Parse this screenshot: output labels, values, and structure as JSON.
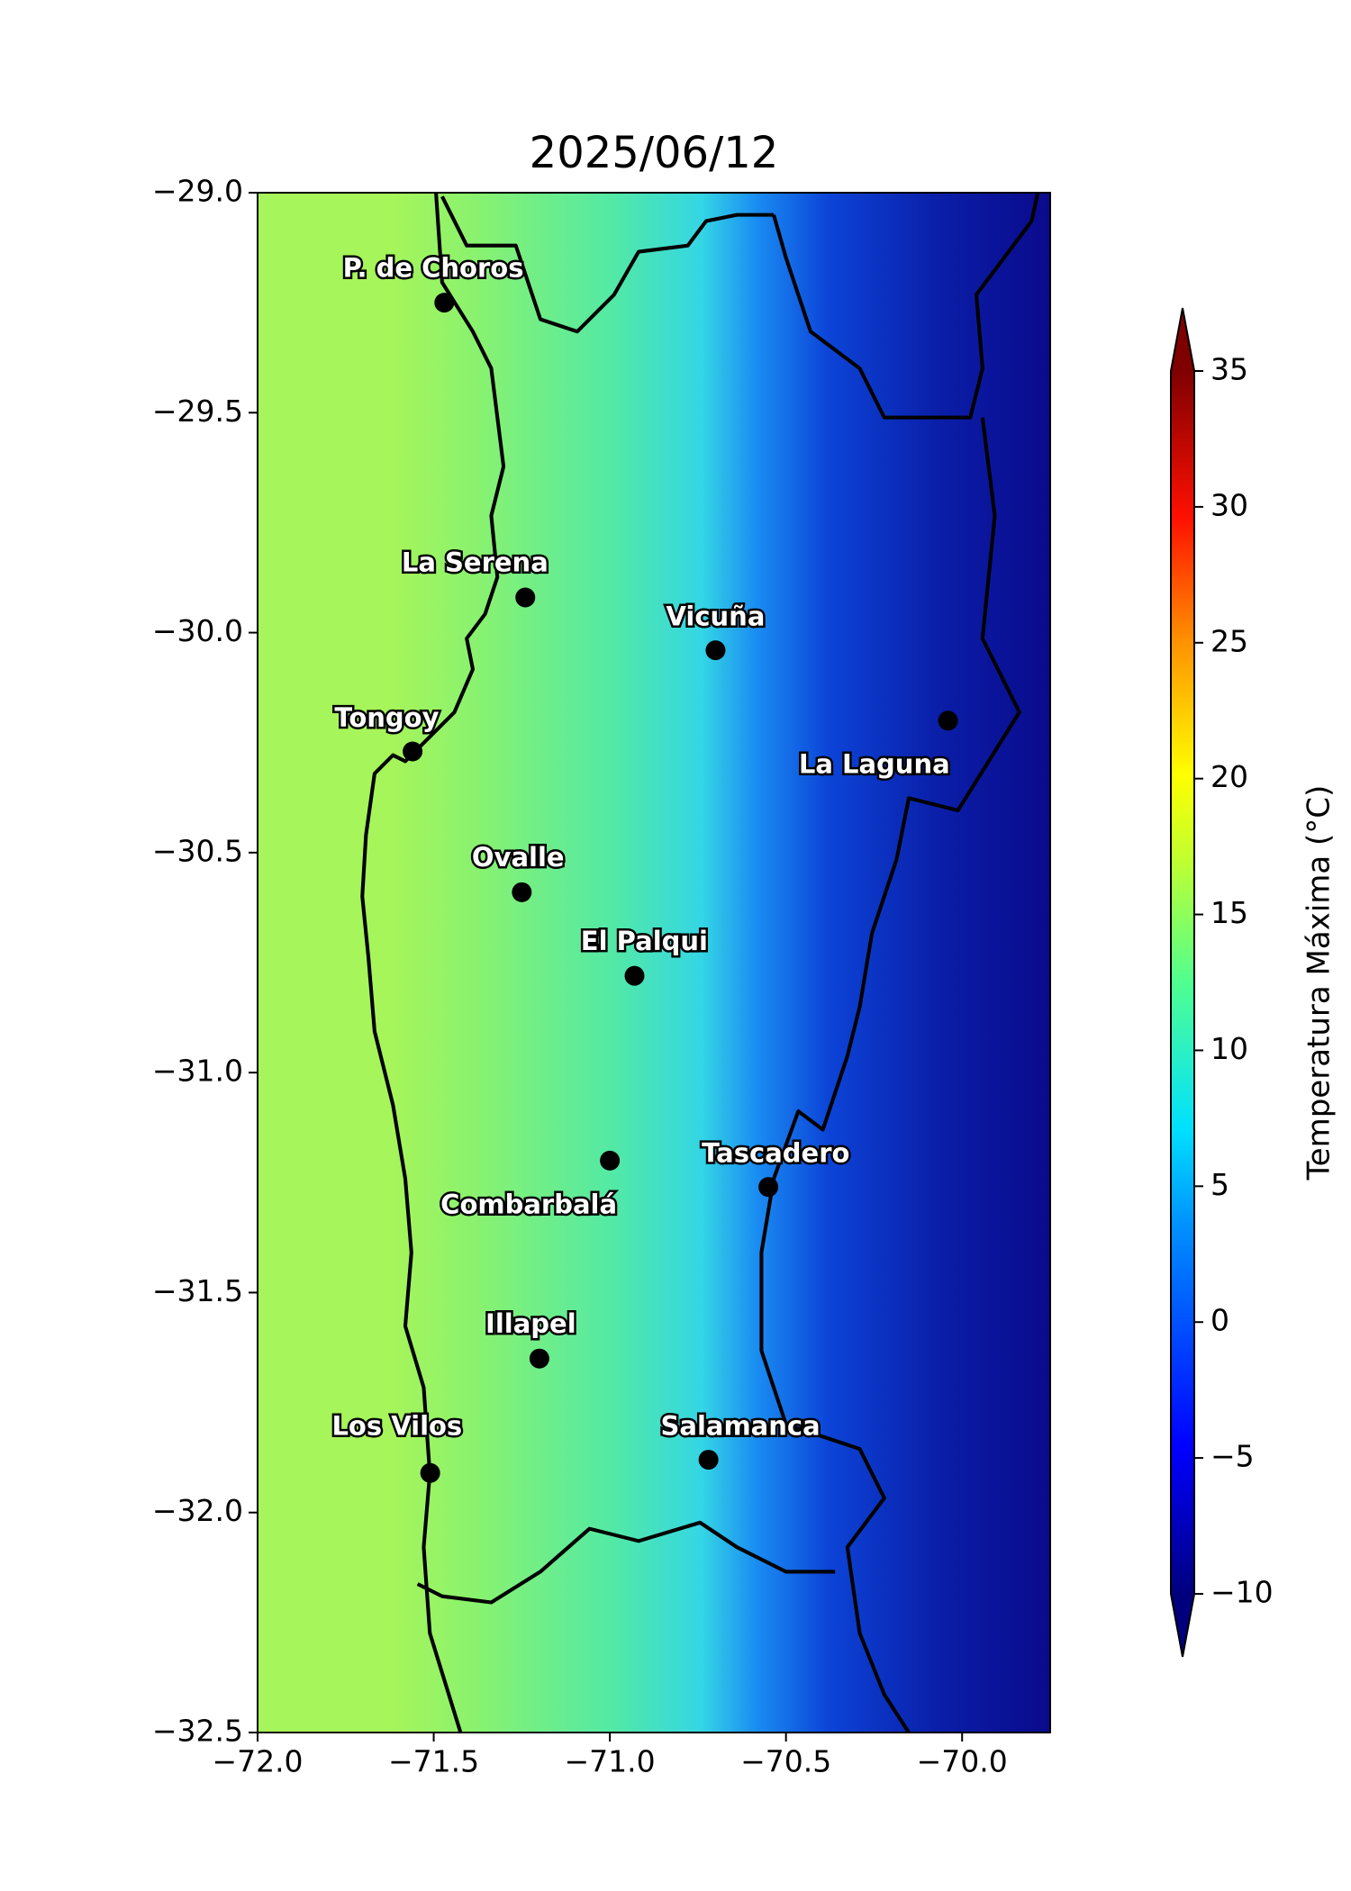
{
  "title": "2025/06/12",
  "map": {
    "xlim": [
      -72,
      -69.75
    ],
    "ylim": [
      -32.5,
      -29
    ],
    "xticks": [
      {
        "value": -72,
        "label": "−72.0"
      },
      {
        "value": -71.5,
        "label": "−71.5"
      },
      {
        "value": -71,
        "label": "−71.0"
      },
      {
        "value": -70.5,
        "label": "−70.5"
      },
      {
        "value": -70,
        "label": "−70.0"
      }
    ],
    "yticks": [
      {
        "value": -29,
        "label": "−29.0"
      },
      {
        "value": -29.5,
        "label": "−29.5"
      },
      {
        "value": -30,
        "label": "−30.0"
      },
      {
        "value": -30.5,
        "label": "−30.5"
      },
      {
        "value": -31,
        "label": "−31.0"
      },
      {
        "value": -31.5,
        "label": "−31.5"
      },
      {
        "value": -32,
        "label": "−32.0"
      },
      {
        "value": -32.5,
        "label": "−32.5"
      }
    ]
  },
  "cities": [
    {
      "name": "P. de Choros",
      "lon": -71.47,
      "lat": -29.25
    },
    {
      "name": "La Serena",
      "lon": -71.24,
      "lat": -29.92
    },
    {
      "name": "Vicuña",
      "lon": -70.7,
      "lat": -30.04
    },
    {
      "name": "La Laguna",
      "lon": -70.04,
      "lat": -30.2
    },
    {
      "name": "Tongoy",
      "lon": -71.56,
      "lat": -30.27
    },
    {
      "name": "Ovalle",
      "lon": -71.25,
      "lat": -30.59
    },
    {
      "name": "El Palqui",
      "lon": -70.93,
      "lat": -30.78
    },
    {
      "name": "Combarbalá",
      "lon": -71.0,
      "lat": -31.2
    },
    {
      "name": "Tascadero",
      "lon": -70.55,
      "lat": -31.26
    },
    {
      "name": "Illapel",
      "lon": -71.2,
      "lat": -31.65
    },
    {
      "name": "Salamanca",
      "lon": -70.72,
      "lat": -31.88
    },
    {
      "name": "Los Vilos",
      "lon": -71.51,
      "lat": -31.91
    }
  ],
  "colorbar": {
    "label": "Temperatura Máxima (°C)",
    "lim": [
      -10,
      35
    ],
    "ticks": [
      {
        "value": -10,
        "label": "−10"
      },
      {
        "value": -5,
        "label": "−5"
      },
      0,
      5,
      10,
      15,
      20,
      25,
      30,
      35
    ]
  }
}
